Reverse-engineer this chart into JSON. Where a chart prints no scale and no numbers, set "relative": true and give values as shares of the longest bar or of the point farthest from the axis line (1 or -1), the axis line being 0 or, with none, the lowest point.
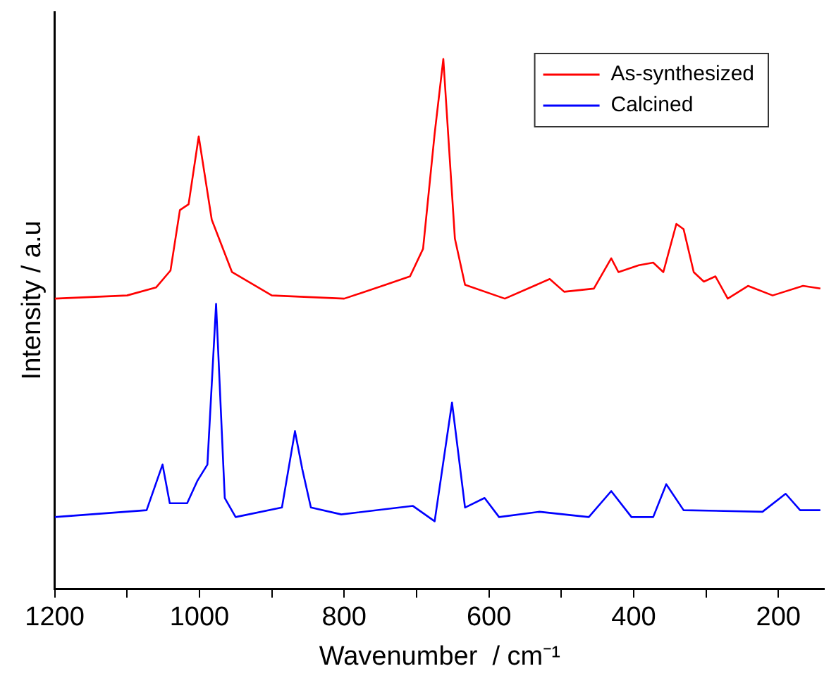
{
  "chart_data": {
    "type": "line",
    "relative": true,
    "xlabel": "Wavenumber  / cm⁻¹",
    "ylabel": "Intensity / a.u",
    "xlim": [
      1200,
      136
    ],
    "xticks": [
      1200,
      {
        "value": 1100,
        "label": null
      },
      1000,
      {
        "value": 900,
        "label": null
      },
      800,
      {
        "value": 700,
        "label": null
      },
      600,
      {
        "value": 500,
        "label": null
      },
      400,
      {
        "value": 300,
        "label": null
      },
      200
    ],
    "tick_labels": "x",
    "legend": "top right",
    "grid": false,
    "marker": "none",
    "line_style": "solid",
    "series": [
      {
        "name": "As-synthesized",
        "color": "#ff0000",
        "x": [
          1200,
          1150,
          1100,
          1060,
          1040,
          1027,
          1015,
          1001,
          983,
          955,
          900,
          800,
          743,
          709,
          691,
          675,
          663,
          647,
          633,
          578,
          516,
          496,
          455,
          431,
          421,
          393,
          373,
          359,
          341,
          331,
          317,
          303,
          287,
          270,
          242,
          208,
          166,
          142
        ],
        "values": [
          0.548,
          0.551,
          0.554,
          0.569,
          0.601,
          0.715,
          0.726,
          0.854,
          0.697,
          0.598,
          0.554,
          0.548,
          0.574,
          0.59,
          0.642,
          0.859,
          1,
          0.661,
          0.574,
          0.548,
          0.585,
          0.561,
          0.567,
          0.624,
          0.598,
          0.611,
          0.616,
          0.598,
          0.689,
          0.679,
          0.598,
          0.58,
          0.59,
          0.548,
          0.572,
          0.554,
          0.572,
          0.567
        ]
      },
      {
        "name": "Calcined",
        "color": "#0000ff",
        "x": [
          1200,
          1073,
          1051,
          1041,
          1017,
          1003,
          989,
          977,
          965,
          950,
          886,
          868,
          858,
          846,
          804,
          705,
          675,
          651,
          633,
          606,
          586,
          530,
          462,
          431,
          403,
          373,
          355,
          331,
          222,
          190,
          170,
          142
        ],
        "values": [
          0.136,
          0.149,
          0.235,
          0.162,
          0.162,
          0.204,
          0.235,
          0.538,
          0.172,
          0.136,
          0.154,
          0.298,
          0.227,
          0.154,
          0.141,
          0.157,
          0.128,
          0.352,
          0.154,
          0.172,
          0.136,
          0.146,
          0.136,
          0.185,
          0.136,
          0.136,
          0.198,
          0.149,
          0.146,
          0.18,
          0.149,
          0.149
        ]
      }
    ]
  }
}
